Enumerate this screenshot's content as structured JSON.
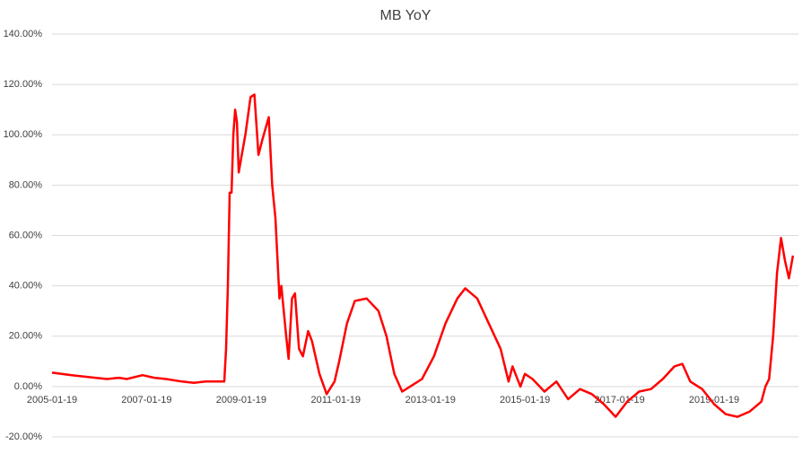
{
  "chart_data": {
    "type": "line",
    "title": "MB YoY",
    "x": [
      "2005-01-19",
      "2005-06-19",
      "2005-12-19",
      "2006-03-19",
      "2006-06-19",
      "2006-08-19",
      "2006-12-19",
      "2007-03-19",
      "2007-06-19",
      "2007-10-19",
      "2008-01-19",
      "2008-04-19",
      "2008-06-19",
      "2008-09-10",
      "2008-09-24",
      "2008-10-08",
      "2008-10-22",
      "2008-11-05",
      "2008-11-19",
      "2008-12-03",
      "2008-12-17",
      "2008-12-31",
      "2009-01-20",
      "2009-02-20",
      "2009-04-01",
      "2009-05-01",
      "2009-06-01",
      "2009-07-01",
      "2009-08-20",
      "2009-09-15",
      "2009-10-10",
      "2009-11-10",
      "2009-11-25",
      "2010-01-01",
      "2010-01-20",
      "2010-02-15",
      "2010-03-10",
      "2010-04-10",
      "2010-05-10",
      "2010-06-20",
      "2010-07-20",
      "2010-09-15",
      "2010-11-10",
      "2011-01-10",
      "2011-02-15",
      "2011-04-15",
      "2011-06-15",
      "2011-09-15",
      "2011-12-15",
      "2012-02-15",
      "2012-04-15",
      "2012-06-15",
      "2012-08-15",
      "2012-11-15",
      "2013-02-15",
      "2013-05-15",
      "2013-08-15",
      "2013-10-15",
      "2014-01-15",
      "2014-04-15",
      "2014-07-15",
      "2014-09-15",
      "2014-10-15",
      "2014-12-15",
      "2015-01-19",
      "2015-03-19",
      "2015-06-19",
      "2015-09-19",
      "2015-12-19",
      "2016-03-19",
      "2016-06-19",
      "2016-09-19",
      "2016-12-19",
      "2017-03-19",
      "2017-06-19",
      "2017-09-19",
      "2017-12-19",
      "2018-03-19",
      "2018-05-19",
      "2018-07-19",
      "2018-10-19",
      "2019-01-19",
      "2019-04-19",
      "2019-07-19",
      "2019-10-19",
      "2020-01-19",
      "2020-02-19",
      "2020-03-19",
      "2020-04-19",
      "2020-05-19",
      "2020-06-19",
      "2020-07-19",
      "2020-08-19",
      "2020-09-19"
    ],
    "series": [
      {
        "name": "MB YoY",
        "color": "#ff0000",
        "values": [
          5.5,
          4.5,
          3.5,
          3,
          3.5,
          3,
          4.5,
          3.5,
          3,
          2,
          1.5,
          2,
          2,
          2,
          15,
          40,
          77,
          77,
          100,
          110,
          105,
          85,
          91,
          100,
          115,
          116,
          92,
          98,
          107,
          80,
          67,
          35,
          40,
          20,
          11,
          35,
          37,
          15,
          12,
          22,
          18,
          5,
          -3,
          2,
          10,
          25,
          34,
          35,
          30,
          20,
          5,
          -2,
          0,
          3,
          12,
          25,
          35,
          39,
          35,
          25,
          15,
          2,
          8,
          0,
          5,
          3,
          -2,
          2,
          -5,
          -1,
          -3,
          -7,
          -12,
          -6,
          -2,
          -1,
          3,
          8,
          9,
          2,
          -1,
          -7,
          -11,
          -12,
          -10,
          -6,
          0,
          3,
          20,
          45,
          59,
          50,
          43,
          52
        ]
      }
    ],
    "xlim": [
      "2005-01-19",
      "2020-10-19"
    ],
    "xticks": [
      "2005-01-19",
      "2007-01-19",
      "2009-01-19",
      "2011-01-19",
      "2013-01-19",
      "2015-01-19",
      "2017-01-19",
      "2019-01-19"
    ],
    "ylim": [
      -20,
      140
    ],
    "yticks": [
      {
        "value": -20,
        "label": "-20.00%"
      },
      {
        "value": 0,
        "label": "0.00%"
      },
      {
        "value": 20,
        "label": "20.00%"
      },
      {
        "value": 40,
        "label": "40.00%"
      },
      {
        "value": 60,
        "label": "60.00%"
      },
      {
        "value": 80,
        "label": "80.00%"
      },
      {
        "value": 100,
        "label": "100.00%"
      },
      {
        "value": 120,
        "label": "120.00%"
      },
      {
        "value": 140,
        "label": "140.00%"
      }
    ],
    "grid": true
  }
}
